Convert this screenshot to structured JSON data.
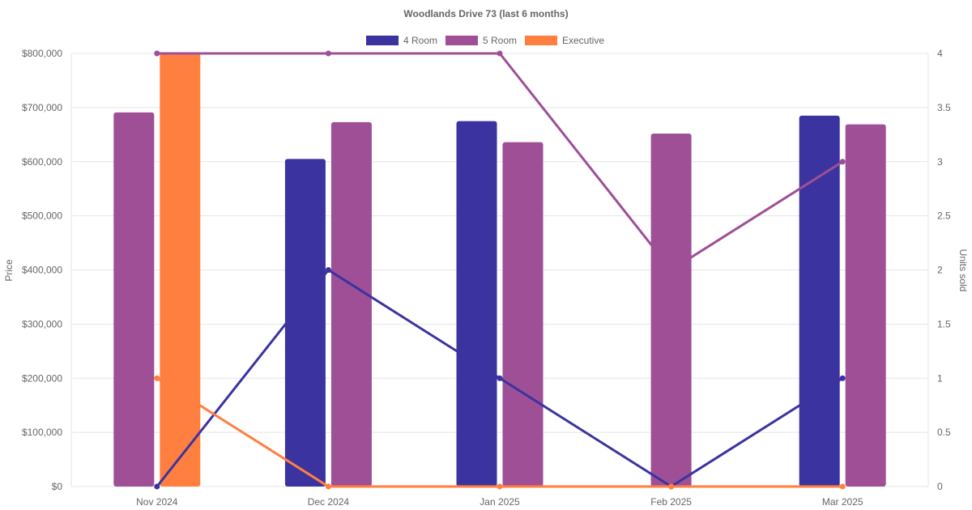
{
  "chart_data": {
    "type": "bar",
    "title": "Woodlands Drive 73 (last 6 months)",
    "categories": [
      "Nov 2024",
      "Dec 2024",
      "Jan 2025",
      "Feb 2025",
      "Mar 2025"
    ],
    "ylabel": "Price",
    "y2label": "Units sold",
    "ylim": [
      0,
      800000
    ],
    "y2lim": [
      0,
      4
    ],
    "yticks": [
      "$0",
      "$100,000",
      "$200,000",
      "$300,000",
      "$400,000",
      "$500,000",
      "$600,000",
      "$700,000",
      "$800,000"
    ],
    "y2ticks": [
      "0",
      "0.5",
      "1",
      "1.5",
      "2",
      "2.5",
      "3",
      "3.5",
      "4"
    ],
    "grid": true,
    "legend_position": "top",
    "legend": [
      {
        "name": "4 Room",
        "color": "#3a33a0"
      },
      {
        "name": "5 Room",
        "color": "#9e4f96"
      },
      {
        "name": "Executive",
        "color": "#ff7f41"
      }
    ],
    "bar_series": [
      {
        "name": "4 Room",
        "color": "#3a33a0",
        "values": [
          null,
          605000,
          675000,
          null,
          685000
        ]
      },
      {
        "name": "5 Room",
        "color": "#9e4f96",
        "values": [
          691000,
          673000,
          636000,
          652000,
          669000
        ]
      },
      {
        "name": "Executive",
        "color": "#ff7f41",
        "values": [
          800000,
          null,
          null,
          null,
          null
        ]
      }
    ],
    "line_series": [
      {
        "name": "4 Room",
        "color": "#3a33a0",
        "axis": "right",
        "values": [
          0,
          2,
          1,
          0,
          1
        ]
      },
      {
        "name": "5 Room",
        "color": "#9e4f96",
        "axis": "right",
        "values": [
          4,
          4,
          4,
          2,
          3
        ]
      },
      {
        "name": "Executive",
        "color": "#ff7f41",
        "axis": "right",
        "values": [
          1,
          0,
          0,
          0,
          0
        ]
      }
    ]
  }
}
